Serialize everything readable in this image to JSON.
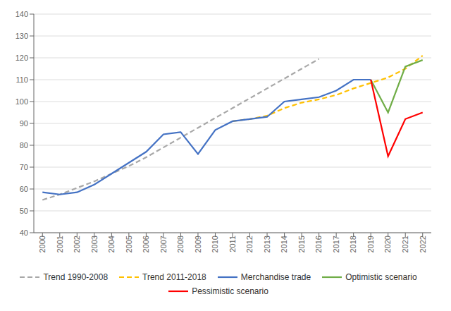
{
  "chart_data": {
    "type": "line",
    "x": [
      2000,
      2001,
      2002,
      2003,
      2004,
      2005,
      2006,
      2007,
      2008,
      2009,
      2010,
      2011,
      2012,
      2013,
      2014,
      2015,
      2016,
      2017,
      2018,
      2019,
      2020,
      2021,
      2022
    ],
    "series": [
      {
        "name": "Trend 1990-2008",
        "color": "#A8A8A8",
        "line_style": "dashed",
        "values": [
          55,
          57.5,
          60.5,
          63.5,
          67,
          70.5,
          74.5,
          79,
          83.5,
          88,
          92.5,
          97,
          101.5,
          106,
          110.5,
          115,
          119.5,
          null,
          null,
          null,
          null,
          null,
          null
        ]
      },
      {
        "name": "Trend 2011-2018",
        "color": "#FFC000",
        "line_style": "dashed",
        "values": [
          null,
          null,
          null,
          null,
          null,
          null,
          null,
          null,
          null,
          null,
          null,
          91,
          92,
          93.5,
          97,
          99.5,
          101,
          103,
          106,
          108.5,
          111,
          115,
          121
        ]
      },
      {
        "name": "Merchandise trade",
        "color": "#4472C4",
        "line_style": "solid",
        "values": [
          58.5,
          57.5,
          58.5,
          62,
          67,
          72,
          77,
          85,
          86,
          76,
          87,
          91,
          92,
          93,
          100,
          101,
          102,
          105,
          110,
          110,
          null,
          null,
          null
        ]
      },
      {
        "name": "Optimistic scenario",
        "color": "#70AD47",
        "line_style": "solid",
        "values": [
          null,
          null,
          null,
          null,
          null,
          null,
          null,
          null,
          null,
          null,
          null,
          null,
          null,
          null,
          null,
          null,
          null,
          null,
          null,
          110,
          95,
          116,
          119
        ]
      },
      {
        "name": "Pessimistic scenario",
        "color": "#FF0000",
        "line_style": "solid",
        "values": [
          null,
          null,
          null,
          null,
          null,
          null,
          null,
          null,
          null,
          null,
          null,
          null,
          null,
          null,
          null,
          null,
          null,
          null,
          null,
          110,
          75,
          92,
          95
        ]
      }
    ],
    "xlim": [
      1999.5,
      2022.5
    ],
    "xticks": [
      2000,
      2001,
      2002,
      2003,
      2004,
      2005,
      2006,
      2007,
      2008,
      2009,
      2010,
      2011,
      2012,
      2013,
      2014,
      2015,
      2016,
      2017,
      2018,
      2019,
      2020,
      2021,
      2022
    ],
    "ylim": [
      40,
      140
    ],
    "yticks": [
      40,
      50,
      60,
      70,
      80,
      90,
      100,
      110,
      120,
      130,
      140
    ],
    "grid": true,
    "legend": "bottom"
  }
}
